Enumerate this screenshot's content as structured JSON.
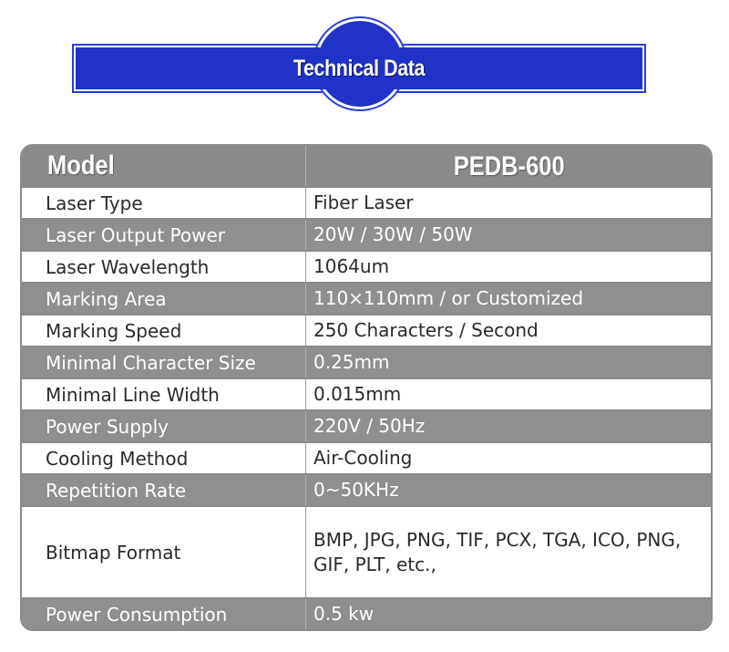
{
  "banner": {
    "title": "Technical Data",
    "color": "#1f33c9"
  },
  "table": {
    "header": {
      "key": "Model",
      "value": "PEDB-600"
    },
    "rows": [
      {
        "key": "Laser Type",
        "value": "Fiber Laser"
      },
      {
        "key": "Laser Output Power",
        "value": "20W / 30W / 50W"
      },
      {
        "key": "Laser Wavelength",
        "value": "1064um"
      },
      {
        "key": "Marking Area",
        "value": "110×110mm / or Customized"
      },
      {
        "key": "Marking Speed",
        "value": "250 Characters / Second"
      },
      {
        "key": "Minimal Character Size",
        "value": "0.25mm"
      },
      {
        "key": "Minimal Line Width",
        "value": "0.015mm"
      },
      {
        "key": "Power Supply",
        "value": "220V / 50Hz"
      },
      {
        "key": "Cooling Method",
        "value": "Air-Cooling"
      },
      {
        "key": "Repetition Rate",
        "value": "0~50KHz"
      },
      {
        "key": "Bitmap Format",
        "value": "BMP, JPG, PNG, TIF, PCX, TGA, ICO, PNG, GIF, PLT, etc.,"
      },
      {
        "key": "Power Consumption",
        "value": "0.5 kw"
      }
    ],
    "colors": {
      "grey_row": "#8f8f8f",
      "white_row": "#ffffff",
      "border": "#8a8a8a"
    }
  }
}
